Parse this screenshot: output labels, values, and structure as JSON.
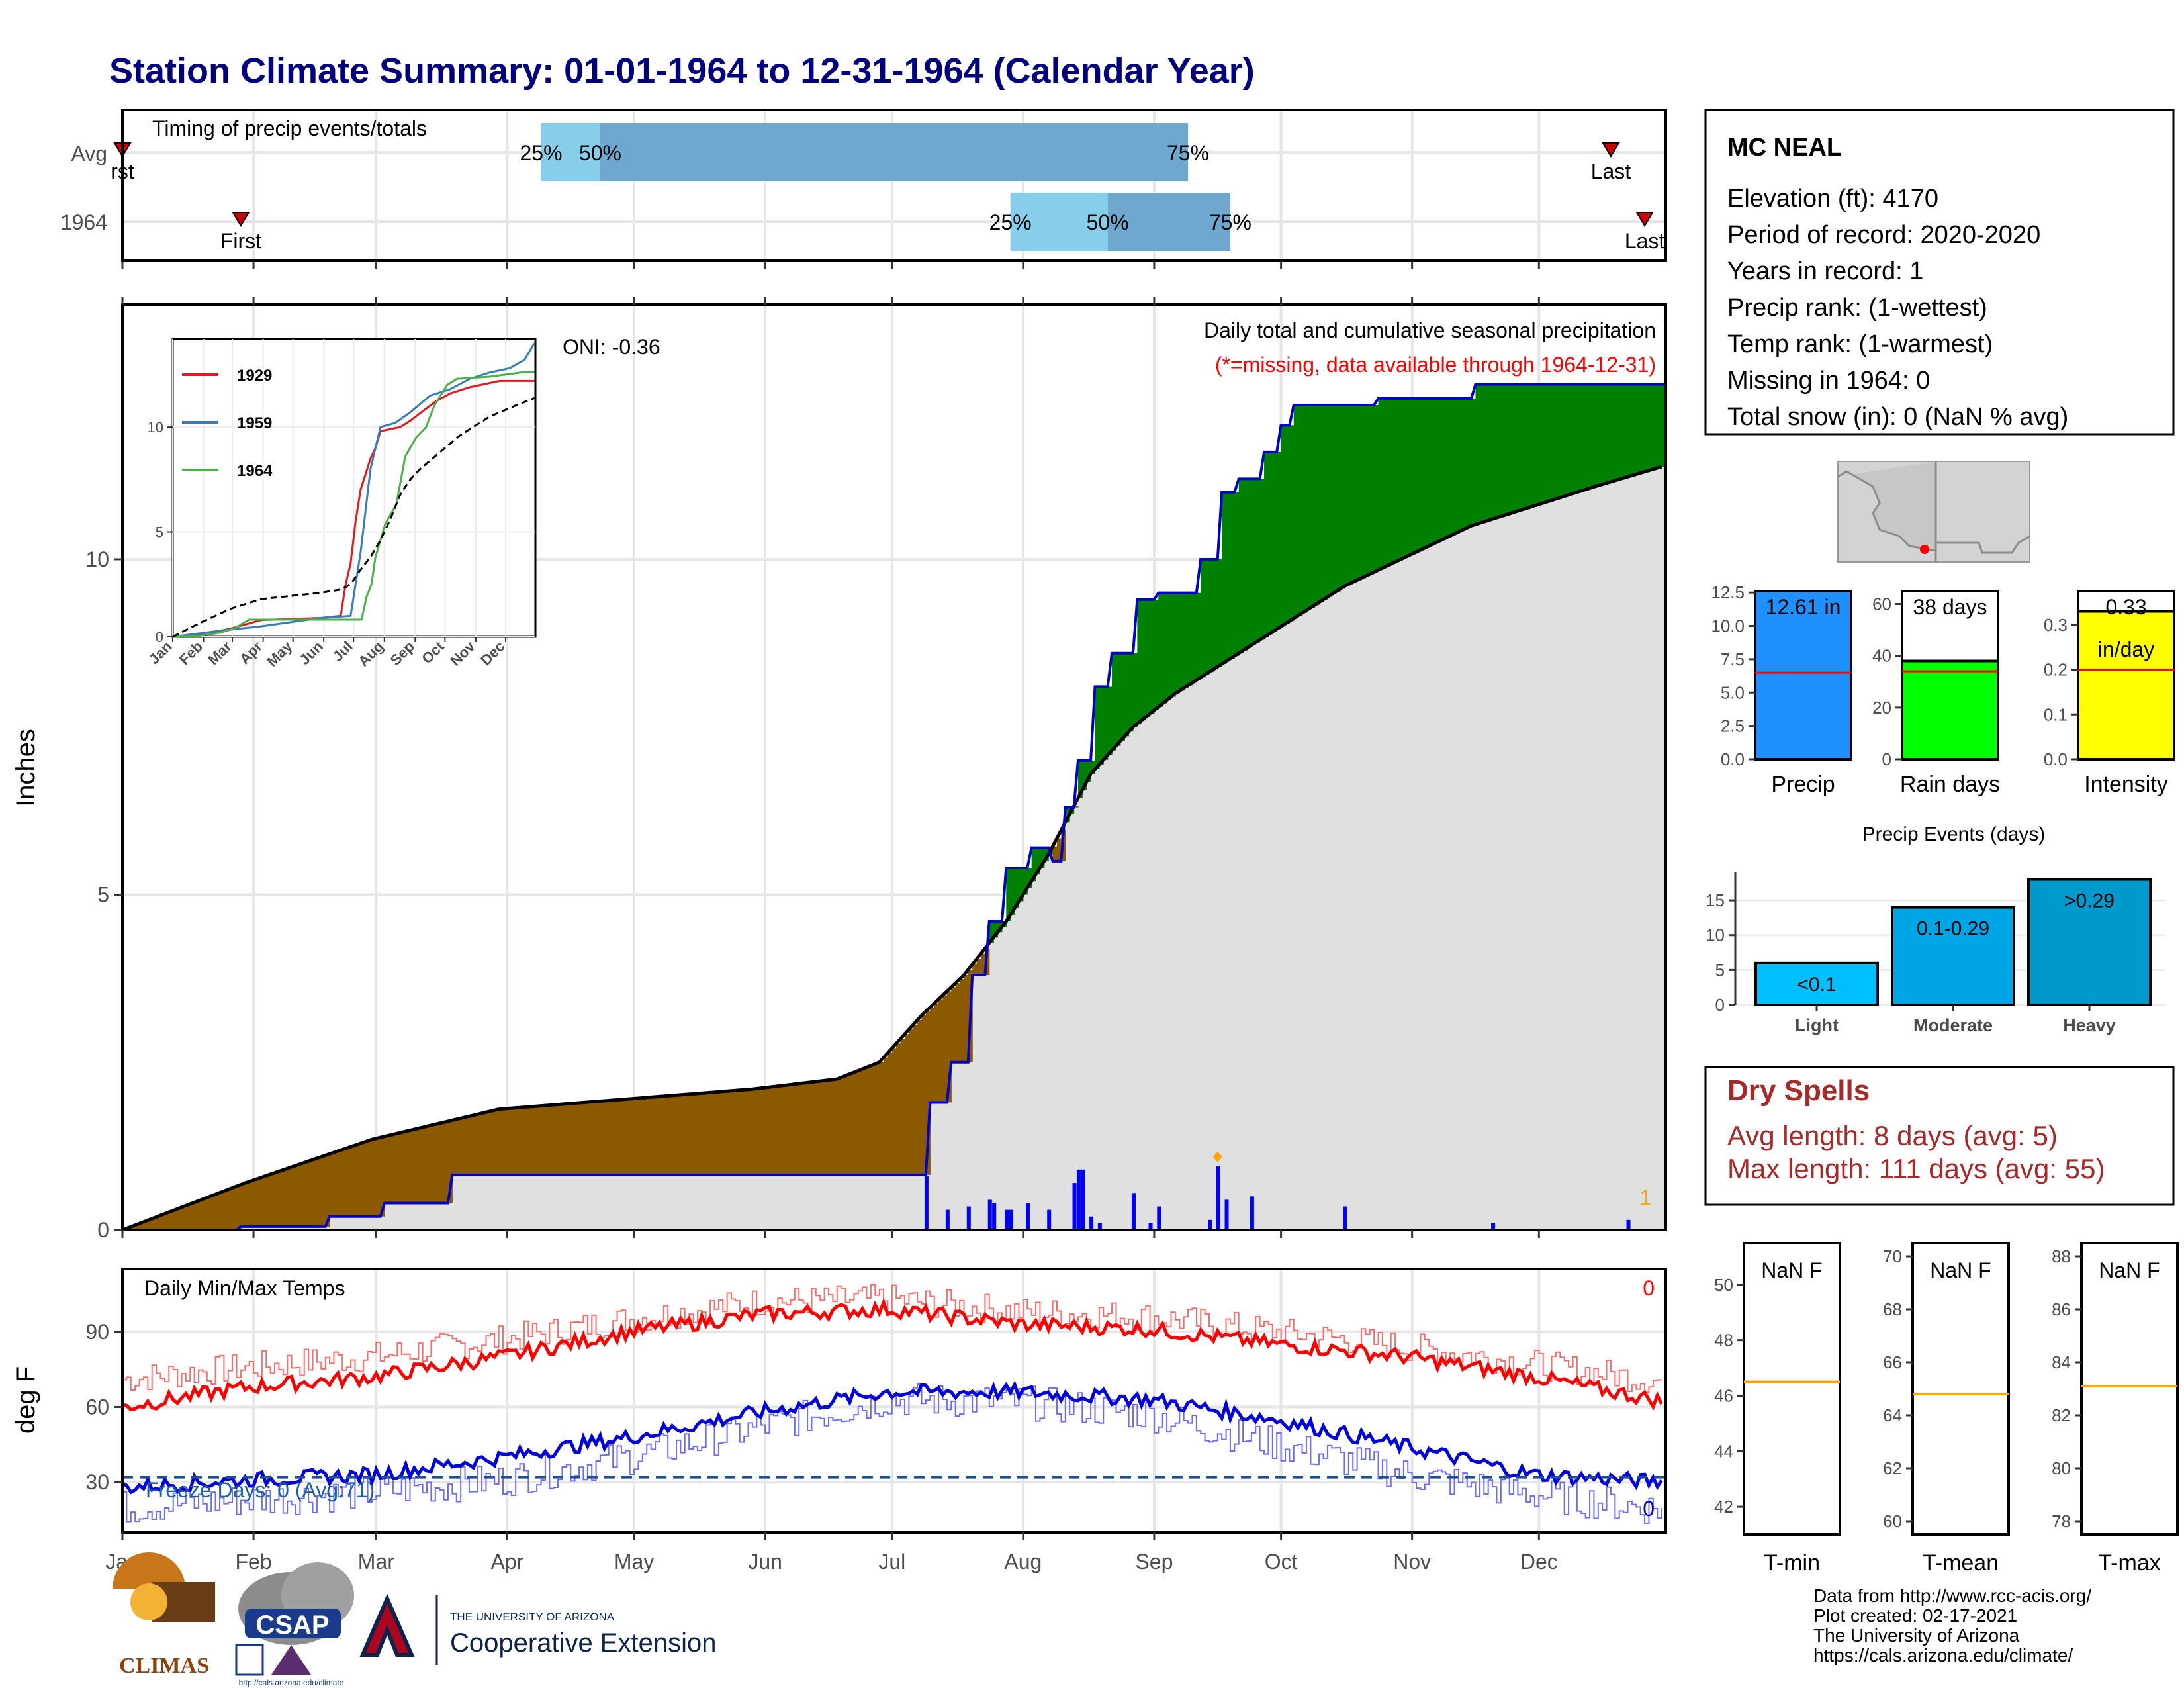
{
  "title": "Station Climate Summary: 01-01-1964 to 12-31-1964 (Calendar Year)",
  "timing": {
    "label": "Timing of precip events/totals",
    "rows": [
      "Avg",
      "1964"
    ],
    "avg_markers": {
      "first": "rst",
      "p25": "25%",
      "p50": "50%",
      "p75": "75%",
      "last": "Last"
    },
    "y1964_markers": {
      "first": "First",
      "p25": "25%",
      "p50": "50%",
      "p75": "75%",
      "last": "Last"
    },
    "avg_day_of_year": {
      "first": 1,
      "p25": 100,
      "p50": 114,
      "p75": 253,
      "last": 353
    },
    "y1964_day_of_year": {
      "first": 29,
      "p25": 211,
      "p50": 234,
      "p75": 263,
      "last": 361
    }
  },
  "precip": {
    "ylabel": "Inches",
    "yticks": [
      "0",
      "5",
      "10"
    ],
    "subtitle": "Daily total and cumulative seasonal precipitation",
    "missing_note": "(*=missing, data available through 1964-12-31)",
    "oni": "ONI: -0.36",
    "corner_count": "1",
    "colors": {
      "above": "#008000",
      "below": "#8b5a00",
      "normal_fill": "#e0e0e0",
      "line": "#0000cc"
    }
  },
  "inset": {
    "legend": [
      "1929",
      "1959",
      "1964"
    ],
    "legend_colors": [
      "#e41a1c",
      "#377eb8",
      "#4daf4a"
    ],
    "yticks": [
      "0",
      "5",
      "10"
    ],
    "months": [
      "Jan",
      "Feb",
      "Mar",
      "Apr",
      "May",
      "Jun",
      "Jul",
      "Aug",
      "Sep",
      "Oct",
      "Nov",
      "Dec"
    ]
  },
  "temps": {
    "label": "Daily Min/Max Temps",
    "ylabel": "deg F",
    "yticks": [
      "30",
      "60",
      "90"
    ],
    "freeze": "Freeze Days: 0 (Avg:71)",
    "max_count": "0",
    "min_count": "0"
  },
  "months": [
    "Jan",
    "Feb",
    "Mar",
    "Apr",
    "May",
    "Jun",
    "Jul",
    "Aug",
    "Sep",
    "Oct",
    "Nov",
    "Dec"
  ],
  "station": {
    "name": "MC NEAL",
    "lines": [
      "Elevation (ft): 4170",
      "Period of record: 2020-2020",
      "Years in record: 1",
      "Precip rank:  (1-wettest)",
      "Temp rank:  (1-warmest)",
      "Missing in 1964: 0",
      "Total snow (in): 0 (NaN % avg)"
    ]
  },
  "mini_bars": {
    "precip": {
      "label": "Precip",
      "value_label": "12.61 in",
      "value": 12.61,
      "avg": 6.5,
      "yticks": [
        "0.0",
        "2.5",
        "5.0",
        "7.5",
        "10.0",
        "12.5"
      ],
      "color": "#1e90ff"
    },
    "raindays": {
      "label": "Rain days",
      "value_label": "38 days",
      "value": 38,
      "avg": 34,
      "yticks": [
        "0",
        "20",
        "40",
        "60"
      ],
      "color": "#00ff00"
    },
    "intensity": {
      "label": "Intensity",
      "value_label": "0.33",
      "value_label2": "in/day",
      "value": 0.33,
      "avg": 0.2,
      "yticks": [
        "0.0",
        "0.1",
        "0.2",
        "0.3"
      ],
      "color": "#ffff00"
    }
  },
  "events": {
    "title": "Precip Events (days)",
    "categories": [
      "Light",
      "Moderate",
      "Heavy"
    ],
    "labels": [
      "<0.1",
      "0.1-0.29",
      ">0.29"
    ],
    "values": [
      6,
      14,
      18
    ],
    "yticks": [
      "0",
      "5",
      "10",
      "15"
    ],
    "colors": [
      "#00bfff",
      "#00a5e6",
      "#0099cc"
    ]
  },
  "dry": {
    "title": "Dry Spells",
    "avg": "Avg length: 8 days (avg: 5)",
    "max": "Max length: 111 days (avg: 55)"
  },
  "temp_boxes": [
    {
      "label": "T-min",
      "value": "NaN F",
      "yticks": [
        "42",
        "44",
        "46",
        "48",
        "50"
      ],
      "avg": 46.5,
      "min": 41,
      "max": 51.5
    },
    {
      "label": "T-mean",
      "value": "NaN F",
      "yticks": [
        "60",
        "62",
        "64",
        "66",
        "68",
        "70"
      ],
      "avg": 64.8,
      "min": 59.5,
      "max": 70.5
    },
    {
      "label": "T-max",
      "value": "NaN F",
      "yticks": [
        "78",
        "80",
        "82",
        "84",
        "86",
        "88"
      ],
      "avg": 83.1,
      "min": 77.5,
      "max": 88.5
    }
  ],
  "footer": [
    "Data from http://www.rcc-acis.org/",
    "Plot created: 02-17-2021",
    "The University of Arizona",
    "https://cals.arizona.edu/climate/"
  ],
  "logos": {
    "climas": "CLIMAS",
    "csap": "CSAP",
    "ua_small": "THE UNIVERSITY OF ARIZONA",
    "coop": "Cooperative Extension",
    "csap_url": "http://cals.arizona.edu/climate"
  },
  "chart_data": [
    {
      "type": "area",
      "title": "Daily total and cumulative seasonal precipitation",
      "ylabel": "Inches",
      "ylim": [
        0,
        13.8
      ],
      "xlim": [
        1,
        366
      ],
      "x_axis": "day of year (Jan–Dec 1964)",
      "series": [
        {
          "name": "1964",
          "x": [
            1,
            28,
            29,
            49,
            50,
            62,
            63,
            78,
            79,
            191,
            192,
            196,
            197,
            201,
            202,
            205,
            206,
            209,
            210,
            215,
            216,
            220,
            221,
            223,
            224,
            226,
            227,
            230,
            231,
            234,
            235,
            240,
            241,
            245,
            246,
            250,
            251,
            255,
            256,
            260,
            261,
            264,
            265,
            270,
            271,
            274,
            275,
            277,
            278,
            282,
            283,
            287,
            288,
            297,
            298,
            320,
            321,
            353,
            354,
            366
          ],
          "values": [
            0,
            0,
            0.05,
            0.05,
            0.2,
            0.2,
            0.4,
            0.4,
            0.82,
            0.82,
            1.9,
            1.9,
            2.5,
            2.5,
            3.8,
            3.8,
            4.6,
            4.6,
            5.4,
            5.4,
            5.7,
            5.7,
            5.5,
            5.5,
            6.3,
            6.3,
            7.0,
            7.0,
            8.1,
            8.1,
            8.6,
            8.6,
            9.4,
            9.4,
            9.5,
            9.5,
            9.5,
            9.5,
            10.0,
            10.0,
            11.0,
            11.0,
            11.2,
            11.2,
            11.6,
            11.6,
            12.0,
            12.0,
            12.3,
            12.3,
            12.3,
            12.3,
            12.3,
            12.3,
            12.4,
            12.4,
            12.61,
            12.61,
            12.61,
            12.61
          ]
        },
        {
          "name": "Avg",
          "x": [
            1,
            30,
            60,
            90,
            120,
            150,
            170,
            180,
            190,
            200,
            210,
            220,
            230,
            240,
            250,
            260,
            270,
            280,
            290,
            300,
            310,
            320,
            330,
            340,
            350,
            366
          ],
          "values": [
            0,
            0.7,
            1.35,
            1.8,
            1.95,
            2.1,
            2.25,
            2.5,
            3.2,
            3.8,
            4.6,
            5.6,
            6.8,
            7.5,
            8.0,
            8.4,
            8.8,
            9.2,
            9.6,
            9.9,
            10.2,
            10.5,
            10.7,
            10.9,
            11.1,
            11.4
          ]
        }
      ],
      "daily_bars": {
        "x": [
          191,
          196,
          201,
          206,
          207,
          210,
          211,
          215,
          220,
          226,
          227,
          228,
          230,
          232,
          240,
          244,
          246,
          258,
          260,
          262,
          268,
          290,
          325,
          357
        ],
        "values": [
          0.8,
          0.3,
          0.35,
          0.45,
          0.4,
          0.3,
          0.3,
          0.4,
          0.3,
          0.7,
          0.9,
          0.9,
          0.2,
          0.1,
          0.55,
          0.1,
          0.35,
          0.15,
          0.95,
          0.45,
          0.5,
          0.35,
          0.1,
          0.15
        ]
      }
    },
    {
      "type": "line",
      "title": "Daily Min/Max Temps",
      "ylabel": "deg F",
      "ylim": [
        10,
        115
      ],
      "series": [
        {
          "name": "Max 1964",
          "x": [
            1,
            31,
            60,
            91,
            121,
            152,
            182,
            213,
            244,
            274,
            305,
            335,
            366
          ],
          "values": [
            60,
            68,
            72,
            80,
            90,
            97,
            99,
            93,
            91,
            85,
            80,
            72,
            62
          ]
        },
        {
          "name": "Avg Max",
          "x": [
            1,
            31,
            60,
            91,
            121,
            152,
            182,
            213,
            244,
            274,
            305,
            335,
            366
          ],
          "values": [
            71,
            76,
            80,
            87,
            95,
            102,
            103,
            98,
            96,
            90,
            84,
            77,
            70
          ]
        },
        {
          "name": "Min 1964",
          "x": [
            1,
            31,
            60,
            91,
            121,
            152,
            182,
            213,
            244,
            274,
            305,
            335,
            366
          ],
          "values": [
            28,
            31,
            33,
            40,
            48,
            58,
            66,
            66,
            63,
            55,
            44,
            33,
            30
          ]
        },
        {
          "name": "Avg Min",
          "x": [
            1,
            31,
            60,
            91,
            121,
            152,
            182,
            213,
            244,
            274,
            305,
            335,
            366
          ],
          "values": [
            20,
            23,
            26,
            31,
            40,
            52,
            63,
            62,
            57,
            45,
            33,
            25,
            19
          ]
        }
      ],
      "freeze_line": 32
    },
    {
      "type": "bar",
      "title": "Precip Events (days)",
      "categories": [
        "Light",
        "Moderate",
        "Heavy"
      ],
      "values": [
        6,
        14,
        18
      ],
      "ylim": [
        0,
        19
      ]
    }
  ]
}
